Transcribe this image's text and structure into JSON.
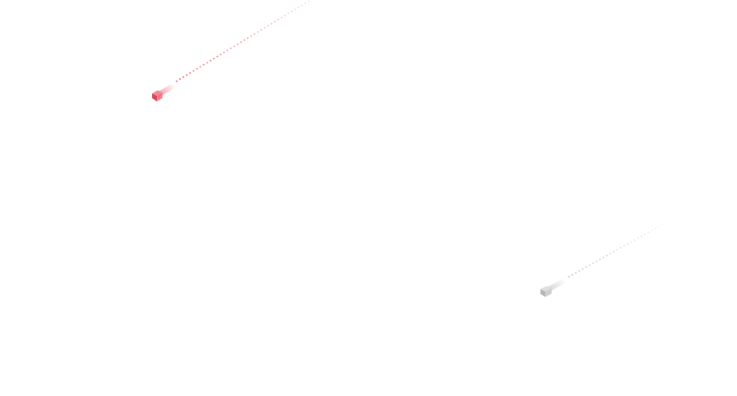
{
  "decorations": {
    "red_streak": {
      "color": "#f06a7a",
      "color_dark": "#e0455a",
      "icon": "shooting-block-icon"
    },
    "gray_streak": {
      "color": "#c8c8c8",
      "color_dark": "#b0b0b0",
      "icon": "shooting-block-icon"
    }
  }
}
